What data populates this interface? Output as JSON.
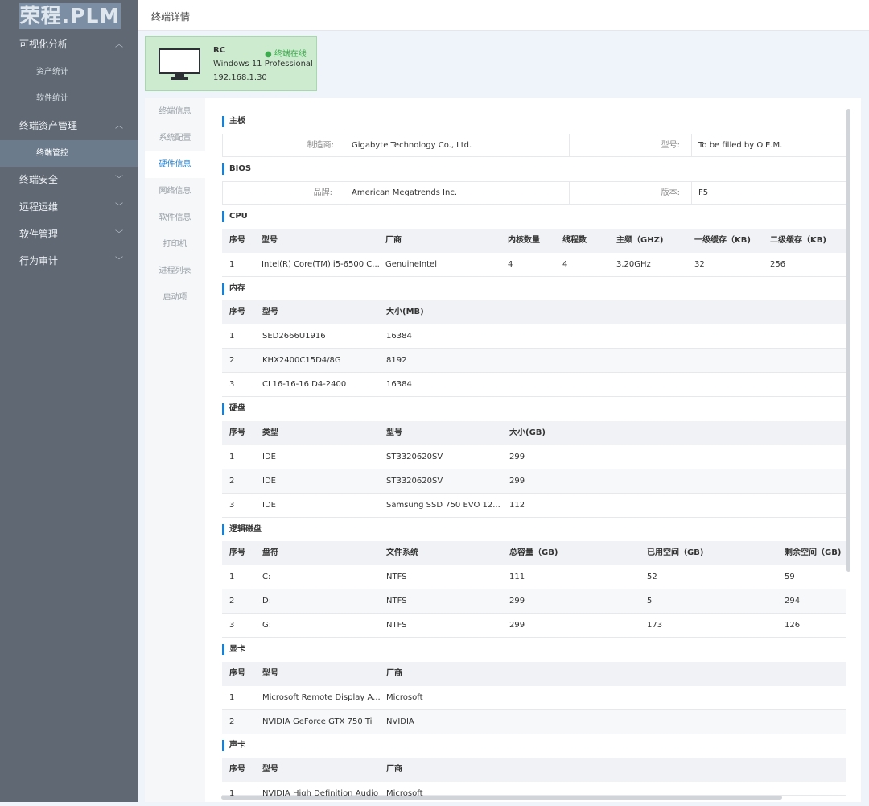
{
  "sidebar": {
    "logo": "荣程.PLM",
    "items": [
      {
        "label": "可视化分析"
      },
      {
        "label": "资产统计"
      },
      {
        "label": "软件统计"
      },
      {
        "label": "终端资产管理"
      },
      {
        "label": "终端管控"
      },
      {
        "label": "终端安全"
      },
      {
        "label": "远程运维"
      },
      {
        "label": "软件管理"
      },
      {
        "label": "行为审计"
      }
    ]
  },
  "header": {
    "title": "终端详情"
  },
  "terminal": {
    "name": "RC",
    "status": "终端在线",
    "os": "Windows 11 Professional",
    "ip": "192.168.1.30",
    "status_color": "#3eaa4f"
  },
  "tabs": [
    {
      "label": "终端信息"
    },
    {
      "label": "系统配置"
    },
    {
      "label": "硬件信息"
    },
    {
      "label": "网络信息"
    },
    {
      "label": "软件信息"
    },
    {
      "label": "打印机"
    },
    {
      "label": "进程列表"
    },
    {
      "label": "启动项"
    }
  ],
  "motherboard": {
    "title": "主板",
    "manufacturer_label": "制造商:",
    "manufacturer": "Gigabyte Technology Co., Ltd.",
    "model_label": "型号:",
    "model": "To be filled by O.E.M."
  },
  "bios": {
    "title": "BIOS",
    "brand_label": "品牌:",
    "brand": "American Megatrends Inc.",
    "version_label": "版本:",
    "version": "F5"
  },
  "cpu": {
    "title": "CPU",
    "headers": [
      "序号",
      "型号",
      "厂商",
      "内核数量",
      "线程数",
      "主频（GHZ)",
      "一级缓存（KB)",
      "二级缓存（KB)"
    ],
    "rows": [
      [
        "1",
        "Intel(R) Core(TM) i5-6500 C...",
        "GenuineIntel",
        "4",
        "4",
        "3.20GHz",
        "32",
        "256"
      ]
    ]
  },
  "memory": {
    "title": "内存",
    "headers": [
      "序号",
      "型号",
      "大小(MB)"
    ],
    "rows": [
      [
        "1",
        "SED2666U1916",
        "16384"
      ],
      [
        "2",
        "KHX2400C15D4/8G",
        "8192"
      ],
      [
        "3",
        "CL16-16-16 D4-2400",
        "16384"
      ]
    ]
  },
  "disk": {
    "title": "硬盘",
    "headers": [
      "序号",
      "类型",
      "型号",
      "大小(GB)"
    ],
    "rows": [
      [
        "1",
        "IDE",
        "ST3320620SV",
        "299"
      ],
      [
        "2",
        "IDE",
        "ST3320620SV",
        "299"
      ],
      [
        "3",
        "IDE",
        "Samsung SSD 750 EVO 12...",
        "112"
      ]
    ]
  },
  "logical": {
    "title": "逻辑磁盘",
    "headers": [
      "序号",
      "盘符",
      "文件系统",
      "总容量（GB)",
      "已用空间（GB)",
      "剩余空间（GB)"
    ],
    "rows": [
      [
        "1",
        "C:",
        "NTFS",
        "111",
        "52",
        "59"
      ],
      [
        "2",
        "D:",
        "NTFS",
        "299",
        "5",
        "294"
      ],
      [
        "3",
        "G:",
        "NTFS",
        "299",
        "173",
        "126"
      ]
    ]
  },
  "gpu": {
    "title": "显卡",
    "headers": [
      "序号",
      "型号",
      "厂商"
    ],
    "rows": [
      [
        "1",
        "Microsoft Remote Display A...",
        "Microsoft"
      ],
      [
        "2",
        "NVIDIA GeForce GTX 750 Ti",
        "NVIDIA"
      ]
    ]
  },
  "sound": {
    "title": "声卡",
    "headers": [
      "序号",
      "型号",
      "厂商"
    ],
    "rows": [
      [
        "1",
        "NVIDIA High Definition Audio",
        "Microsoft"
      ]
    ]
  }
}
